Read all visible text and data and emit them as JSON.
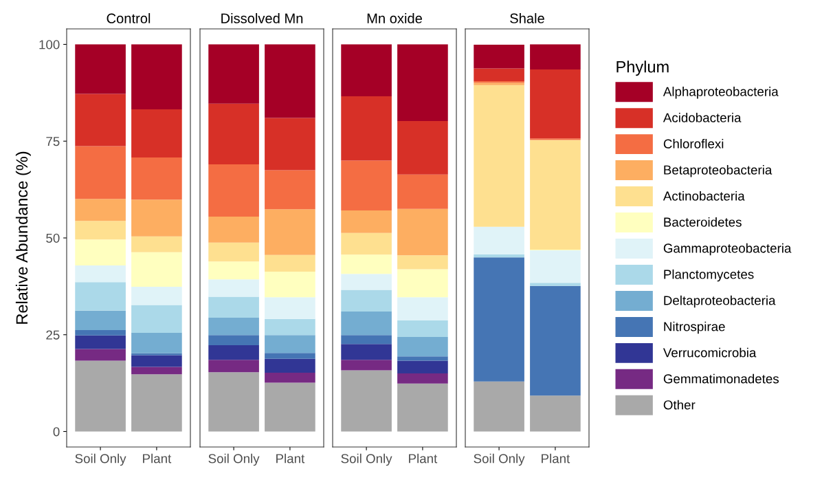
{
  "chart_data": [
    {
      "type": "bar",
      "stacked": true,
      "title": "Control",
      "ylabel": "Relative Abundance (%)",
      "categories": [
        "Soil Only",
        "Plant"
      ],
      "ylim": [
        -4,
        104
      ],
      "yticks": [
        0,
        25,
        50,
        75,
        100
      ],
      "grid": false,
      "series": [
        {
          "color": "#a9a9a9",
          "values": [
            18.3,
            14.8
          ]
        },
        {
          "color": "#762a83",
          "values": [
            3.0,
            1.9
          ]
        },
        {
          "color": "#313695",
          "values": [
            3.5,
            3.0
          ]
        },
        {
          "color": "#4575b4",
          "values": [
            1.4,
            0.5
          ]
        },
        {
          "color": "#74add1",
          "values": [
            5.0,
            5.3
          ]
        },
        {
          "color": "#abd9e9",
          "values": [
            7.4,
            7.2
          ]
        },
        {
          "color": "#e0f3f8",
          "values": [
            4.3,
            4.7
          ]
        },
        {
          "color": "#ffffbf",
          "values": [
            6.7,
            8.9
          ]
        },
        {
          "color": "#fee090",
          "values": [
            4.8,
            4.1
          ]
        },
        {
          "color": "#fdae61",
          "values": [
            5.7,
            9.5
          ]
        },
        {
          "color": "#f46d43",
          "values": [
            13.6,
            10.9
          ]
        },
        {
          "color": "#d73027",
          "values": [
            13.5,
            12.4
          ]
        },
        {
          "color": "#a50026",
          "values": [
            12.8,
            16.8
          ]
        }
      ]
    },
    {
      "type": "bar",
      "stacked": true,
      "title": "Dissolved Mn",
      "categories": [
        "Soil Only",
        "Plant"
      ],
      "ylim": [
        -4,
        104
      ],
      "yticks": [
        0,
        25,
        50,
        75,
        100
      ],
      "tick_labels": "x",
      "grid": false,
      "series": [
        {
          "color": "#a9a9a9",
          "values": [
            15.3,
            12.6
          ]
        },
        {
          "color": "#762a83",
          "values": [
            3.2,
            2.6
          ]
        },
        {
          "color": "#313695",
          "values": [
            3.8,
            3.6
          ]
        },
        {
          "color": "#4575b4",
          "values": [
            2.6,
            1.5
          ]
        },
        {
          "color": "#74add1",
          "values": [
            4.5,
            4.6
          ]
        },
        {
          "color": "#abd9e9",
          "values": [
            5.4,
            4.2
          ]
        },
        {
          "color": "#e0f3f8",
          "values": [
            4.5,
            5.6
          ]
        },
        {
          "color": "#ffffbf",
          "values": [
            4.6,
            6.6
          ]
        },
        {
          "color": "#fee090",
          "values": [
            4.9,
            4.3
          ]
        },
        {
          "color": "#fdae61",
          "values": [
            6.7,
            11.8
          ]
        },
        {
          "color": "#f46d43",
          "values": [
            13.5,
            10.1
          ]
        },
        {
          "color": "#d73027",
          "values": [
            15.7,
            13.5
          ]
        },
        {
          "color": "#a50026",
          "values": [
            15.3,
            19.0
          ]
        }
      ]
    },
    {
      "type": "bar",
      "stacked": true,
      "title": "Mn oxide",
      "categories": [
        "Soil Only",
        "Plant"
      ],
      "ylim": [
        -4,
        104
      ],
      "yticks": [
        0,
        25,
        50,
        75,
        100
      ],
      "tick_labels": "x",
      "grid": false,
      "series": [
        {
          "color": "#a9a9a9",
          "values": [
            15.8,
            12.4
          ]
        },
        {
          "color": "#762a83",
          "values": [
            2.7,
            2.6
          ]
        },
        {
          "color": "#313695",
          "values": [
            4.1,
            3.3
          ]
        },
        {
          "color": "#4575b4",
          "values": [
            2.3,
            1.1
          ]
        },
        {
          "color": "#74add1",
          "values": [
            6.1,
            5.0
          ]
        },
        {
          "color": "#abd9e9",
          "values": [
            5.6,
            4.3
          ]
        },
        {
          "color": "#e0f3f8",
          "values": [
            4.1,
            6.0
          ]
        },
        {
          "color": "#ffffbf",
          "values": [
            5.0,
            7.2
          ]
        },
        {
          "color": "#fee090",
          "values": [
            5.6,
            3.6
          ]
        },
        {
          "color": "#fdae61",
          "values": [
            5.8,
            12.0
          ]
        },
        {
          "color": "#f46d43",
          "values": [
            12.9,
            8.9
          ]
        },
        {
          "color": "#d73027",
          "values": [
            16.6,
            13.8
          ]
        },
        {
          "color": "#a50026",
          "values": [
            13.4,
            19.8
          ]
        }
      ]
    },
    {
      "type": "bar",
      "stacked": true,
      "title": "Shale",
      "categories": [
        "Soil Only",
        "Plant"
      ],
      "ylim": [
        -4,
        104
      ],
      "yticks": [
        0,
        25,
        50,
        75,
        100
      ],
      "tick_labels": "x",
      "grid": false,
      "legend": "right",
      "legend_title": "Phylum",
      "series": [
        {
          "name": "Other",
          "color": "#a9a9a9",
          "values": [
            12.9,
            9.3
          ]
        },
        {
          "name": "Gemmatimonadetes",
          "color": "#762a83",
          "values": [
            0,
            0
          ]
        },
        {
          "name": "Verrucomicrobia",
          "color": "#313695",
          "values": [
            0,
            0
          ]
        },
        {
          "name": "Nitrospirae",
          "color": "#4575b4",
          "values": [
            32.1,
            28.3
          ]
        },
        {
          "name": "Deltaproteobacteria",
          "color": "#74add1",
          "values": [
            null,
            0
          ]
        },
        {
          "name": "Planctomycetes",
          "color": "#abd9e9",
          "values": [
            0.8,
            0.8
          ]
        },
        {
          "name": "Gammaproteobacteria",
          "color": "#e0f3f8",
          "values": [
            7.1,
            8.4
          ]
        },
        {
          "name": "Bacteroidetes",
          "color": "#ffffbf",
          "values": [
            0,
            0.2
          ]
        },
        {
          "name": "Actinobacteria",
          "color": "#fee090",
          "values": [
            36.6,
            28.3
          ]
        },
        {
          "name": "Betaproteobacteria",
          "color": "#fdae61",
          "values": [
            0.6,
            0
          ]
        },
        {
          "name": "Chloroflexi",
          "color": "#f46d43",
          "values": [
            0.4,
            0.4
          ]
        },
        {
          "name": "Acidobacteria",
          "color": "#d73027",
          "values": [
            3.3,
            17.8
          ]
        },
        {
          "name": "Alphaproteobacteria",
          "color": "#a50026",
          "values": [
            6.1,
            6.5
          ]
        }
      ]
    }
  ]
}
